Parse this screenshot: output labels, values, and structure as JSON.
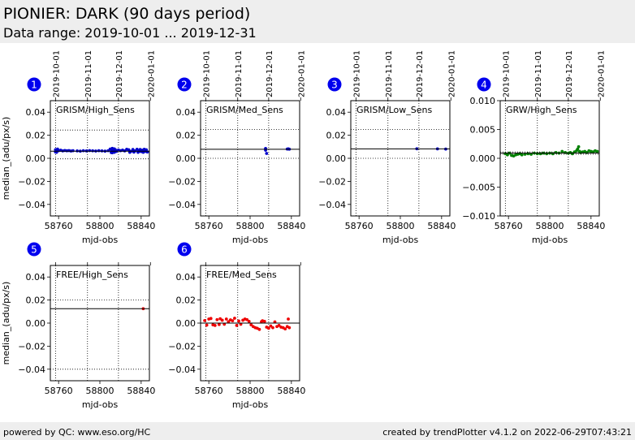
{
  "header": {
    "title": "PIONIER: DARK (90 days period)",
    "subtitle": "Data range: 2019-10-01 ... 2019-12-31"
  },
  "footer": {
    "left": "powered by QC: www.eso.org/HC",
    "right": "created by trendPlotter v4.1.2 on 2022-06-29T07:43:21"
  },
  "colors": {
    "badge": "#0000ee",
    "blue": "#0000cc",
    "green": "#008000",
    "red": "#ee0000"
  },
  "chart_data": [
    {
      "type": "scatter",
      "panel_number": "1",
      "label": "GRISM/High_Sens",
      "ylabel": "median_(adu/px/s)",
      "xlabel": "mjd-obs",
      "xlim": [
        58752,
        58848
      ],
      "ylim": [
        -0.05,
        0.05
      ],
      "xticks": [
        58760,
        58800,
        58840
      ],
      "xtick_labels": [
        "58760",
        "58800",
        "58840"
      ],
      "yticks": [
        0.04,
        0.02,
        0.0,
        -0.02,
        -0.04
      ],
      "ytick_labels": [
        "0.04",
        "0.02",
        "0.00",
        "−0.02",
        "−0.04"
      ],
      "date_ticks": [
        58757,
        58788,
        58818,
        58849
      ],
      "date_tick_labels": [
        "2019-10-01",
        "2019-11-01",
        "2019-12-01",
        "2020-01-01"
      ],
      "median_line": 0.0062,
      "band": [
        0.0245,
        -0.0005
      ],
      "color": "#0000cc",
      "points": [
        [
          58757,
          0.0055
        ],
        [
          58757,
          0.0075
        ],
        [
          58758,
          0.0068
        ],
        [
          58758,
          0.0052
        ],
        [
          58759,
          0.008
        ],
        [
          58760,
          0.0066
        ],
        [
          58762,
          0.007
        ],
        [
          58764,
          0.0064
        ],
        [
          58766,
          0.0068
        ],
        [
          58768,
          0.0065
        ],
        [
          58770,
          0.0067
        ],
        [
          58772,
          0.0063
        ],
        [
          58774,
          0.0066
        ],
        [
          58778,
          0.0064
        ],
        [
          58781,
          0.0062
        ],
        [
          58784,
          0.0066
        ],
        [
          58787,
          0.0064
        ],
        [
          58790,
          0.0067
        ],
        [
          58793,
          0.0065
        ],
        [
          58796,
          0.0063
        ],
        [
          58799,
          0.0066
        ],
        [
          58802,
          0.0064
        ],
        [
          58805,
          0.0062
        ],
        [
          58808,
          0.0066
        ],
        [
          58810,
          0.008
        ],
        [
          58811,
          0.005
        ],
        [
          58811,
          0.0075
        ],
        [
          58812,
          0.0086
        ],
        [
          58812,
          0.0048
        ],
        [
          58813,
          0.007
        ],
        [
          58813,
          0.0058
        ],
        [
          58814,
          0.0082
        ],
        [
          58814,
          0.0052
        ],
        [
          58815,
          0.0074
        ],
        [
          58816,
          0.006
        ],
        [
          58818,
          0.0072
        ],
        [
          58820,
          0.0066
        ],
        [
          58822,
          0.0071
        ],
        [
          58824,
          0.0064
        ],
        [
          58826,
          0.0078
        ],
        [
          58828,
          0.0074
        ],
        [
          58829,
          0.0052
        ],
        [
          58830,
          0.006
        ],
        [
          58832,
          0.0076
        ],
        [
          58833,
          0.0054
        ],
        [
          58834,
          0.0064
        ],
        [
          58836,
          0.0078
        ],
        [
          58837,
          0.0052
        ],
        [
          58838,
          0.0062
        ],
        [
          58839,
          0.0076
        ],
        [
          58840,
          0.0058
        ],
        [
          58841,
          0.007
        ],
        [
          58842,
          0.0052
        ],
        [
          58843,
          0.0078
        ],
        [
          58844,
          0.006
        ],
        [
          58845,
          0.0074
        ],
        [
          58846,
          0.0055
        ]
      ]
    },
    {
      "type": "scatter",
      "panel_number": "2",
      "label": "GRISM/Med_Sens",
      "ylabel": "",
      "xlabel": "mjd-obs",
      "xlim": [
        58752,
        58848
      ],
      "ylim": [
        -0.05,
        0.05
      ],
      "xticks": [
        58760,
        58800,
        58840
      ],
      "xtick_labels": [
        "58760",
        "58800",
        "58840"
      ],
      "yticks": [
        0.04,
        0.02,
        0.0,
        -0.02,
        -0.04
      ],
      "ytick_labels": [
        "0.04",
        "0.02",
        "0.00",
        "−0.02",
        "−0.04"
      ],
      "date_ticks": [
        58757,
        58788,
        58818,
        58849
      ],
      "date_tick_labels": [
        "2019-10-01",
        "2019-11-01",
        "2019-12-01",
        "2020-01-01"
      ],
      "median_line": 0.0078,
      "band": [
        0.025,
        0.0
      ],
      "color": "#0000cc",
      "points": [
        [
          58815,
          0.0085
        ],
        [
          58815,
          0.007
        ],
        [
          58816,
          0.0042
        ],
        [
          58836,
          0.008
        ],
        [
          58837,
          0.0082
        ],
        [
          58838,
          0.0079
        ]
      ]
    },
    {
      "type": "scatter",
      "panel_number": "3",
      "label": "GRISM/Low_Sens",
      "ylabel": "",
      "xlabel": "mjd-obs",
      "xlim": [
        58752,
        58848
      ],
      "ylim": [
        -0.05,
        0.05
      ],
      "xticks": [
        58760,
        58800,
        58840
      ],
      "xtick_labels": [
        "58760",
        "58800",
        "58840"
      ],
      "yticks": [
        0.04,
        0.02,
        0.0,
        -0.02,
        -0.04
      ],
      "ytick_labels": [
        "0.04",
        "0.02",
        "0.00",
        "−0.02",
        "−0.04"
      ],
      "date_ticks": [
        58757,
        58788,
        58818,
        58849
      ],
      "date_tick_labels": [
        "2019-10-01",
        "2019-11-01",
        "2019-12-01",
        "2020-01-01"
      ],
      "median_line": 0.0082,
      "band": [
        0.025,
        0.0
      ],
      "color": "#0000cc",
      "points": [
        [
          58816,
          0.0083
        ],
        [
          58836,
          0.0082
        ],
        [
          58844,
          0.008
        ]
      ]
    },
    {
      "type": "scatter",
      "panel_number": "4",
      "label": "GRW/High_Sens",
      "ylabel": "",
      "xlabel": "mjd-obs",
      "xlim": [
        58752,
        58848
      ],
      "ylim": [
        -0.01,
        0.01
      ],
      "xticks": [
        58760,
        58800,
        58840
      ],
      "xtick_labels": [
        "58760",
        "58800",
        "58840"
      ],
      "yticks": [
        0.01,
        0.005,
        0.0,
        -0.005,
        -0.01
      ],
      "ytick_labels": [
        "0.010",
        "0.005",
        "0.000",
        "−0.005",
        "−0.010"
      ],
      "date_ticks": [
        58757,
        58788,
        58818,
        58849
      ],
      "date_tick_labels": [
        "2019-10-01",
        "2019-11-01",
        "2019-12-01",
        "2020-01-01"
      ],
      "median_line": 0.0009,
      "band": [
        0.0011,
        0.0007
      ],
      "color": "#008000",
      "points": [
        [
          58757,
          0.0008
        ],
        [
          58759,
          0.0006
        ],
        [
          58761,
          0.0009
        ],
        [
          58763,
          0.0005
        ],
        [
          58765,
          0.0004
        ],
        [
          58767,
          0.0006
        ],
        [
          58769,
          0.0007
        ],
        [
          58771,
          0.0008
        ],
        [
          58773,
          0.0006
        ],
        [
          58776,
          0.0007
        ],
        [
          58779,
          0.0008
        ],
        [
          58782,
          0.0007
        ],
        [
          58785,
          0.0009
        ],
        [
          58788,
          0.0008
        ],
        [
          58791,
          0.0008
        ],
        [
          58794,
          0.0009
        ],
        [
          58797,
          0.0008
        ],
        [
          58800,
          0.0009
        ],
        [
          58803,
          0.0008
        ],
        [
          58806,
          0.001
        ],
        [
          58809,
          0.0009
        ],
        [
          58812,
          0.0012
        ],
        [
          58815,
          0.001
        ],
        [
          58818,
          0.0009
        ],
        [
          58820,
          0.001
        ],
        [
          58822,
          0.0008
        ],
        [
          58824,
          0.0011
        ],
        [
          58826,
          0.0013
        ],
        [
          58827,
          0.0016
        ],
        [
          58828,
          0.002
        ],
        [
          58829,
          0.0012
        ],
        [
          58830,
          0.001
        ],
        [
          58832,
          0.0011
        ],
        [
          58834,
          0.0012
        ],
        [
          58836,
          0.001
        ],
        [
          58838,
          0.0013
        ],
        [
          58840,
          0.0012
        ],
        [
          58842,
          0.0011
        ],
        [
          58844,
          0.0013
        ],
        [
          58846,
          0.0012
        ]
      ]
    },
    {
      "type": "scatter",
      "panel_number": "5",
      "label": "FREE/High_Sens",
      "ylabel": "median_(adu/px/s)",
      "xlabel": "mjd-obs",
      "xlim": [
        58752,
        58848
      ],
      "ylim": [
        -0.05,
        0.05
      ],
      "xticks": [
        58760,
        58800,
        58840
      ],
      "xtick_labels": [
        "58760",
        "58800",
        "58840"
      ],
      "yticks": [
        0.04,
        0.02,
        0.0,
        -0.02,
        -0.04
      ],
      "ytick_labels": [
        "0.04",
        "0.02",
        "0.00",
        "−0.02",
        "−0.04"
      ],
      "date_ticks": [
        58757,
        58788,
        58818,
        58849
      ],
      "date_tick_labels": [
        "",
        "",
        "",
        ""
      ],
      "median_line": 0.0125,
      "band": [
        0.02,
        -0.04
      ],
      "color": "#ee0000",
      "points": [
        [
          58842,
          0.0125
        ]
      ]
    },
    {
      "type": "scatter",
      "panel_number": "6",
      "label": "FREE/Med_Sens",
      "ylabel": "",
      "xlabel": "mjd-obs",
      "xlim": [
        58752,
        58848
      ],
      "ylim": [
        -0.05,
        0.05
      ],
      "xticks": [
        58760,
        58800,
        58840
      ],
      "xtick_labels": [
        "58760",
        "58800",
        "58840"
      ],
      "yticks": [
        0.04,
        0.02,
        0.0,
        -0.02,
        -0.04
      ],
      "ytick_labels": [
        "0.04",
        "0.02",
        "0.00",
        "−0.02",
        "−0.04"
      ],
      "date_ticks": [
        58757,
        58788,
        58818,
        58849
      ],
      "date_tick_labels": [
        "",
        "",
        "",
        ""
      ],
      "median_line": 0.0,
      "band": [
        0.0,
        0.0
      ],
      "color": "#ee0000",
      "points": [
        [
          58756,
          0.0022
        ],
        [
          58758,
          -0.0018
        ],
        [
          58760,
          0.0035
        ],
        [
          58762,
          0.004
        ],
        [
          58764,
          -0.0015
        ],
        [
          58766,
          -0.002
        ],
        [
          58768,
          0.003
        ],
        [
          58770,
          -0.0012
        ],
        [
          58771,
          0.0038
        ],
        [
          58773,
          0.0025
        ],
        [
          58775,
          -0.001
        ],
        [
          58777,
          0.0035
        ],
        [
          58779,
          0.0012
        ],
        [
          58781,
          0.0028
        ],
        [
          58783,
          0.002
        ],
        [
          58785,
          0.0042
        ],
        [
          58787,
          -0.002
        ],
        [
          58789,
          0.0018
        ],
        [
          58791,
          -0.001
        ],
        [
          58793,
          0.0025
        ],
        [
          58795,
          0.0035
        ],
        [
          58797,
          0.003
        ],
        [
          58799,
          0.0015
        ],
        [
          58801,
          -0.0015
        ],
        [
          58803,
          -0.003
        ],
        [
          58805,
          -0.004
        ],
        [
          58807,
          -0.0045
        ],
        [
          58809,
          -0.0055
        ],
        [
          58811,
          0.0012
        ],
        [
          58812,
          0.002
        ],
        [
          58814,
          0.0015
        ],
        [
          58816,
          -0.0035
        ],
        [
          58818,
          -0.0045
        ],
        [
          58820,
          -0.0025
        ],
        [
          58822,
          -0.004
        ],
        [
          58824,
          0.001
        ],
        [
          58826,
          -0.003
        ],
        [
          58828,
          -0.002
        ],
        [
          58830,
          -0.0035
        ],
        [
          58832,
          -0.004
        ],
        [
          58834,
          -0.005
        ],
        [
          58836,
          -0.003
        ],
        [
          58837,
          0.0035
        ],
        [
          58838,
          -0.004
        ]
      ]
    }
  ]
}
